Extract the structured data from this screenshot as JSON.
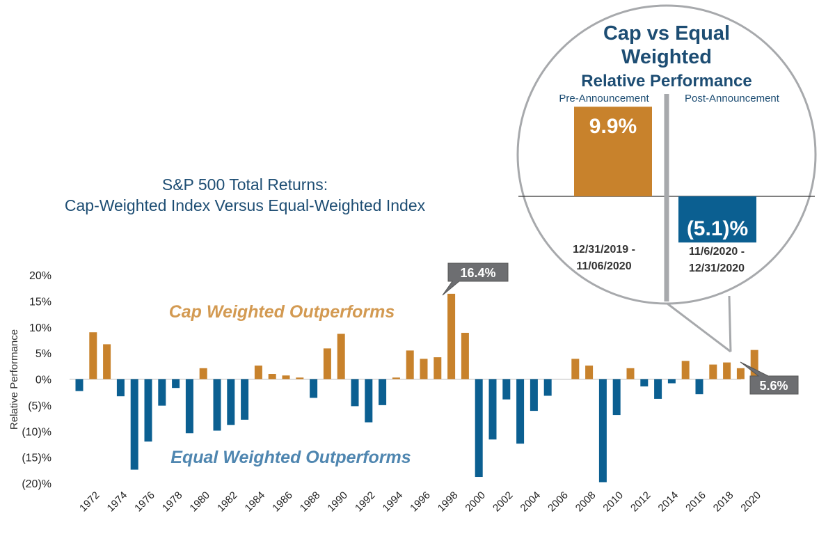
{
  "chart_data": [
    {
      "type": "bar",
      "title_lines": [
        "S&P 500 Total Returns:",
        "Cap-Weighted Index Versus Equal-Weighted Index"
      ],
      "ylabel": "Relative Performance",
      "ylim": [
        -20,
        20
      ],
      "yticks": [
        20,
        15,
        10,
        5,
        0,
        -5,
        -10,
        -15,
        -20
      ],
      "ytick_labels": [
        "20%",
        "15%",
        "10%",
        "5%",
        "0%",
        "(5)%",
        "(10)%",
        "(15)%",
        "(20)%"
      ],
      "years": [
        1971,
        1972,
        1973,
        1974,
        1975,
        1976,
        1977,
        1978,
        1979,
        1980,
        1981,
        1982,
        1983,
        1984,
        1985,
        1986,
        1987,
        1988,
        1989,
        1990,
        1991,
        1992,
        1993,
        1994,
        1995,
        1996,
        1997,
        1998,
        1999,
        2000,
        2001,
        2002,
        2003,
        2004,
        2005,
        2006,
        2007,
        2008,
        2009,
        2010,
        2011,
        2012,
        2013,
        2014,
        2015,
        2016,
        2017,
        2018,
        2019,
        2020
      ],
      "values": [
        -2.3,
        9.0,
        6.7,
        -3.3,
        -17.4,
        -12.0,
        -5.1,
        -1.7,
        -10.4,
        2.1,
        -9.9,
        -8.8,
        -7.8,
        2.6,
        1.0,
        0.7,
        0.3,
        -3.6,
        5.9,
        8.7,
        -5.2,
        -8.3,
        -5.0,
        0.3,
        5.5,
        3.9,
        4.2,
        16.4,
        8.9,
        -18.8,
        -11.6,
        -3.9,
        -12.4,
        -6.1,
        -3.2,
        0.0,
        3.9,
        2.6,
        -19.8,
        -6.9,
        2.1,
        -1.4,
        -3.8,
        -0.8,
        3.5,
        -2.9,
        2.8,
        3.2,
        2.1,
        5.6
      ],
      "xtick_labels": [
        "1972",
        "1974",
        "1976",
        "1978",
        "1980",
        "1982",
        "1984",
        "1986",
        "1988",
        "1990",
        "1992",
        "1994",
        "1996",
        "1998",
        "2000",
        "2002",
        "2004",
        "2006",
        "2008",
        "2010",
        "2012",
        "2014",
        "2016",
        "2018",
        "2020"
      ],
      "annotations": {
        "positive": "Cap Weighted Outperforms",
        "negative": "Equal Weighted Outperforms"
      },
      "callouts": {
        "max_label": "16.4%",
        "last_label": "5.6%"
      },
      "colors": {
        "positive": "#c8822c",
        "negative": "#0b5f91",
        "positive_text": "#d39a52",
        "negative_text": "#4f86b0",
        "callout": "#6d6e71"
      }
    },
    {
      "type": "bar",
      "title_lines": [
        "Cap vs Equal",
        "Weighted"
      ],
      "subtitle": "Relative Performance",
      "categories": [
        "Pre-Announcement",
        "Post-Announcement"
      ],
      "values": [
        9.9,
        -5.1
      ],
      "value_labels": [
        "9.9%",
        "(5.1)%"
      ],
      "period_labels": [
        [
          "12/31/2019 -",
          "11/06/2020"
        ],
        [
          "11/6/2020 -",
          "12/31/2020"
        ]
      ],
      "colors": {
        "positive": "#c8822c",
        "negative": "#0b5f91",
        "divider": "#a7a9ac"
      }
    }
  ]
}
